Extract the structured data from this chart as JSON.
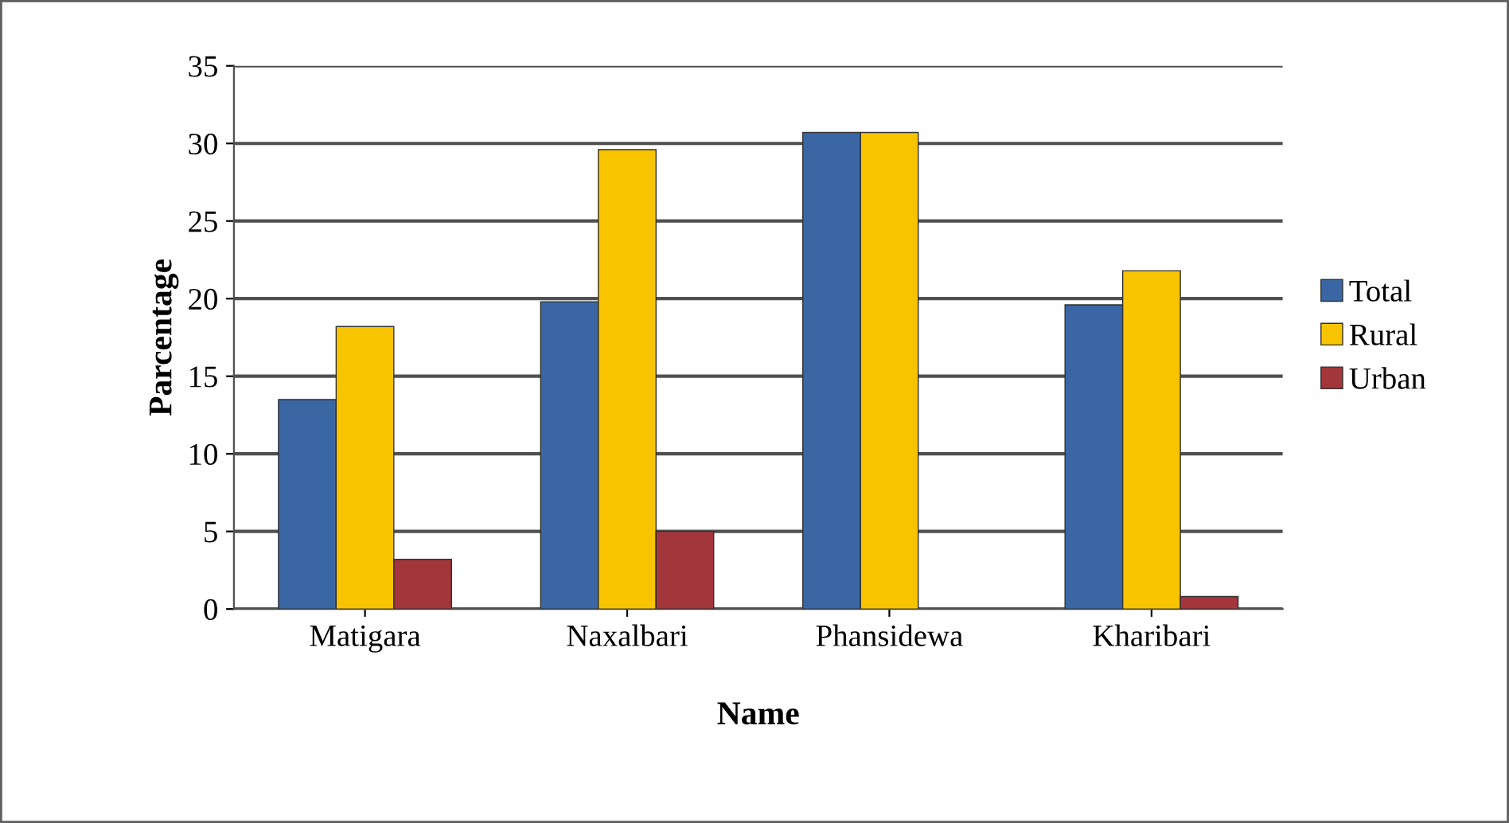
{
  "chart_data": {
    "type": "bar",
    "xlabel": "Name",
    "ylabel": "Parcentage",
    "categories": [
      "Matigara",
      "Naxalbari",
      "Phansidewa",
      "Kharibari"
    ],
    "series": [
      {
        "name": "Total",
        "color": "#3a67a4",
        "values": [
          13.5,
          19.8,
          30.7,
          19.6
        ]
      },
      {
        "name": "Rural",
        "color": "#f8c400",
        "values": [
          18.2,
          29.6,
          30.7,
          21.8
        ]
      },
      {
        "name": "Urban",
        "color": "#a3363a",
        "values": [
          3.2,
          5.0,
          null,
          0.8
        ]
      }
    ],
    "ylim": [
      0,
      35
    ],
    "yticks": [
      0,
      5,
      10,
      15,
      20,
      25,
      30,
      35
    ],
    "grid": "y",
    "legend": "right"
  }
}
